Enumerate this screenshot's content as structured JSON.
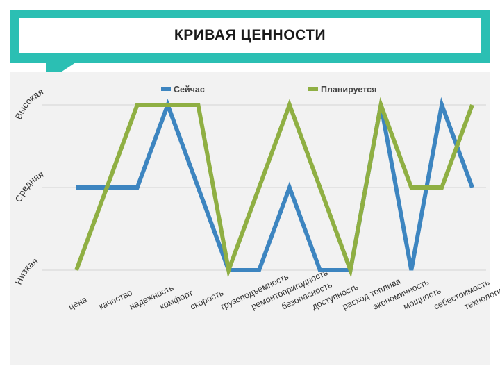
{
  "header": {
    "title": "КРИВАЯ ЦЕННОСТИ"
  },
  "colors": {
    "accent": "#2bbfb3",
    "series_now": "#3d85c0",
    "series_planned": "#8faf43",
    "grid": "#d4d4d4"
  },
  "chart_data": {
    "type": "line",
    "title": "",
    "xlabel": "",
    "ylabel": "",
    "y_levels": [
      "Низкая",
      "Средняя",
      "Высокая"
    ],
    "ylim": [
      0,
      2
    ],
    "legend_position": "top",
    "grid": true,
    "categories": [
      "цена",
      "качество",
      "надежность",
      "комфорт",
      "скорость",
      "грузоподъемность",
      "ремонтопригодность",
      "безопасность",
      "доступность",
      "расход топлива",
      "экономичность",
      "мощность",
      "себестоимость",
      "технологичность"
    ],
    "series": [
      {
        "name": "Сейчас",
        "color": "#3d85c0",
        "values": [
          1,
          1,
          1,
          2,
          1,
          0,
          0,
          1,
          0,
          0,
          2,
          0,
          2,
          1
        ]
      },
      {
        "name": "Планируется",
        "color": "#8faf43",
        "values": [
          0,
          1,
          2,
          2,
          2,
          0,
          1,
          2,
          1,
          0,
          2,
          1,
          1,
          2
        ]
      }
    ]
  }
}
